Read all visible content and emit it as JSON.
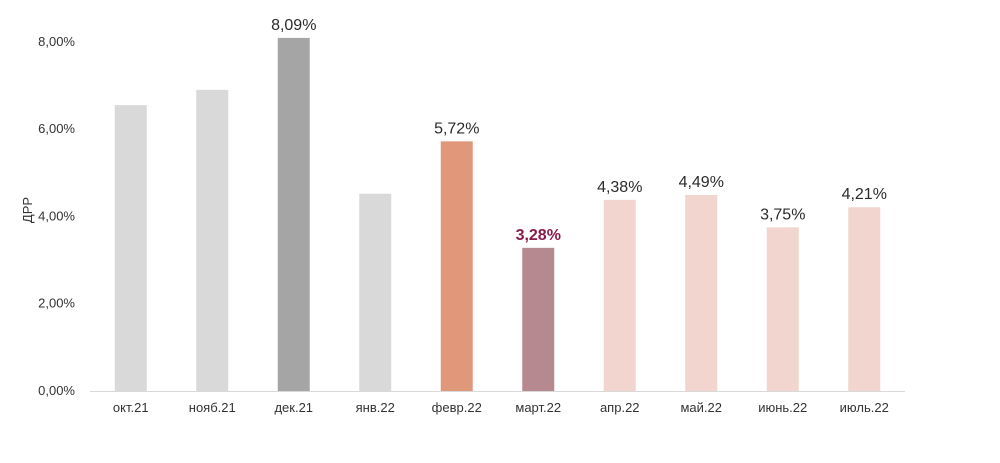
{
  "chart_data": {
    "type": "bar",
    "title": "",
    "xlabel": "",
    "ylabel": "ДРР",
    "ylim": [
      0,
      8.5
    ],
    "y_ticks": [
      "0,00%",
      "2,00%",
      "4,00%",
      "6,00%",
      "8,00%"
    ],
    "y_tick_values": [
      0,
      2,
      4,
      6,
      8
    ],
    "grid": false,
    "categories": [
      "окт.21",
      "нояб.21",
      "дек.21",
      "янв.22",
      "февр.22",
      "март.22",
      "апр.22",
      "май.22",
      "июнь.22",
      "июль.22"
    ],
    "values": [
      6.55,
      6.9,
      8.09,
      4.52,
      5.72,
      3.28,
      4.38,
      4.49,
      3.75,
      4.21
    ],
    "data_labels": [
      "",
      "",
      "8,09%",
      "",
      "5,72%",
      "3,28%",
      "4,38%",
      "4,49%",
      "3,75%",
      "4,21%"
    ],
    "highlight_label_index": 5,
    "colors": [
      "#d9d9d9",
      "#d9d9d9",
      "#a5a5a5",
      "#d9d9d9",
      "#e0987a",
      "#b68990",
      "#f1d5ce",
      "#f1d5ce",
      "#f1d5ce",
      "#f1d5ce"
    ],
    "highlight_label_color": "#8b1a4a",
    "axis_color": "#d9d9d9"
  }
}
